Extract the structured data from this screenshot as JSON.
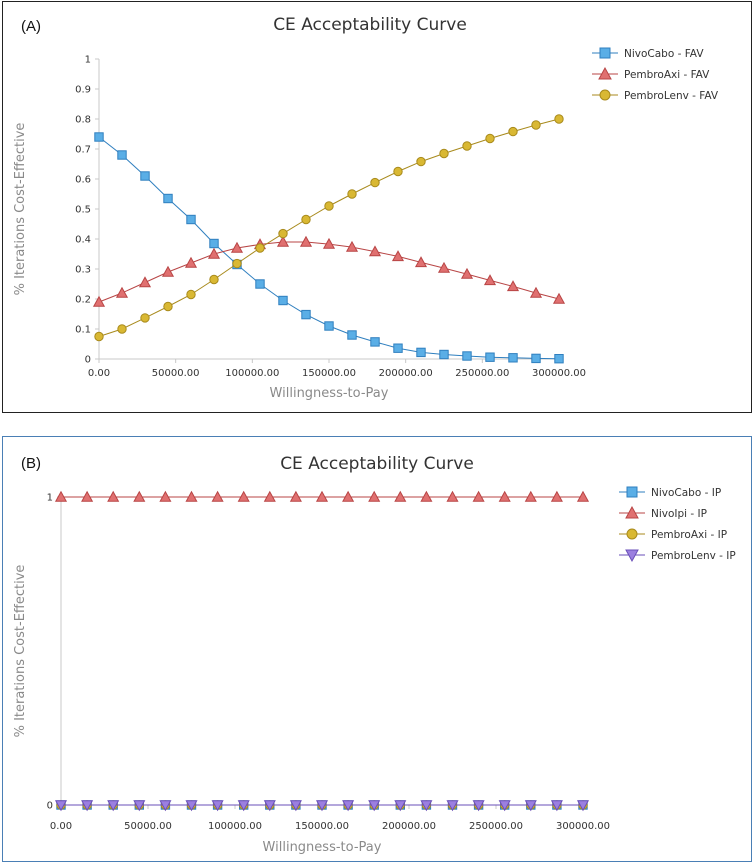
{
  "chart_data": [
    {
      "type": "line",
      "panel_label": "(A)",
      "title": "CE Acceptability Curve",
      "xlabel": "Willingness-to-Pay",
      "ylabel": "% Iterations Cost-Effective",
      "xlim": [
        0,
        300000
      ],
      "ylim": [
        0,
        1
      ],
      "xticks": [
        0,
        50000,
        100000,
        150000,
        200000,
        250000,
        300000
      ],
      "xtick_labels": [
        "0.00",
        "50000.00",
        "100000.00",
        "150000.00",
        "200000.00",
        "250000.00",
        "300000.00"
      ],
      "yticks": [
        0,
        0.1,
        0.2,
        0.3,
        0.4,
        0.5,
        0.6,
        0.7,
        0.8,
        0.9,
        1
      ],
      "ytick_labels": [
        "0",
        "0.1",
        "0.2",
        "0.3",
        "0.4",
        "0.5",
        "0.6",
        "0.7",
        "0.8",
        "0.9",
        "1"
      ],
      "grid": false,
      "legend_position": "top-right",
      "x": [
        0,
        15000,
        30000,
        45000,
        60000,
        75000,
        90000,
        105000,
        120000,
        135000,
        150000,
        165000,
        180000,
        195000,
        210000,
        225000,
        240000,
        255000,
        270000,
        285000,
        300000
      ],
      "series": [
        {
          "name": "NivoCabo - FAV",
          "marker": "square",
          "color": "#5aaee6",
          "stroke": "#2f7fbf",
          "values": [
            0.74,
            0.68,
            0.61,
            0.535,
            0.465,
            0.385,
            0.315,
            0.25,
            0.195,
            0.148,
            0.11,
            0.08,
            0.057,
            0.036,
            0.022,
            0.015,
            0.01,
            0.006,
            0.004,
            0.002,
            0.001
          ]
        },
        {
          "name": "PembroAxi - FAV",
          "marker": "triangle-up",
          "color": "#e07070",
          "stroke": "#b84545",
          "values": [
            0.19,
            0.22,
            0.255,
            0.29,
            0.32,
            0.35,
            0.37,
            0.382,
            0.39,
            0.39,
            0.383,
            0.373,
            0.358,
            0.342,
            0.322,
            0.303,
            0.283,
            0.262,
            0.242,
            0.22,
            0.2
          ]
        },
        {
          "name": "PembroLenv - FAV",
          "marker": "circle",
          "color": "#d9b833",
          "stroke": "#a88a1c",
          "values": [
            0.075,
            0.1,
            0.137,
            0.175,
            0.215,
            0.265,
            0.318,
            0.37,
            0.418,
            0.465,
            0.51,
            0.55,
            0.588,
            0.625,
            0.658,
            0.685,
            0.71,
            0.735,
            0.758,
            0.78,
            0.8
          ]
        }
      ]
    },
    {
      "type": "line",
      "panel_label": "(B)",
      "title": "CE Acceptability Curve",
      "xlabel": "Willingness-to-Pay",
      "ylabel": "% Iterations Cost-Effective",
      "xlim": [
        0,
        300000
      ],
      "ylim": [
        0,
        1
      ],
      "xticks": [
        0,
        50000,
        100000,
        150000,
        200000,
        250000,
        300000
      ],
      "xtick_labels": [
        "0.00",
        "50000.00",
        "100000.00",
        "150000.00",
        "200000.00",
        "250000.00",
        "300000.00"
      ],
      "yticks": [
        0,
        1
      ],
      "ytick_labels": [
        "0",
        "1"
      ],
      "grid": false,
      "legend_position": "top-right",
      "x": [
        0,
        15000,
        30000,
        45000,
        60000,
        75000,
        90000,
        105000,
        120000,
        135000,
        150000,
        165000,
        180000,
        195000,
        210000,
        225000,
        240000,
        255000,
        270000,
        285000,
        300000
      ],
      "series": [
        {
          "name": "NivoCabo - IP",
          "marker": "square",
          "color": "#5aaee6",
          "stroke": "#2f7fbf",
          "values": [
            0,
            0,
            0,
            0,
            0,
            0,
            0,
            0,
            0,
            0,
            0,
            0,
            0,
            0,
            0,
            0,
            0,
            0,
            0,
            0,
            0
          ]
        },
        {
          "name": "NivoIpi - IP",
          "marker": "triangle-up",
          "color": "#e07070",
          "stroke": "#b84545",
          "values": [
            1,
            1,
            1,
            1,
            1,
            1,
            1,
            1,
            1,
            1,
            1,
            1,
            1,
            1,
            1,
            1,
            1,
            1,
            1,
            1,
            1
          ]
        },
        {
          "name": "PembroAxi - IP",
          "marker": "circle",
          "color": "#d9b833",
          "stroke": "#a88a1c",
          "values": [
            0,
            0,
            0,
            0,
            0,
            0,
            0,
            0,
            0,
            0,
            0,
            0,
            0,
            0,
            0,
            0,
            0,
            0,
            0,
            0,
            0
          ]
        },
        {
          "name": "PembroLenv - IP",
          "marker": "triangle-down",
          "color": "#9b7fe0",
          "stroke": "#6a4fb8",
          "values": [
            0,
            0,
            0,
            0,
            0,
            0,
            0,
            0,
            0,
            0,
            0,
            0,
            0,
            0,
            0,
            0,
            0,
            0,
            0,
            0,
            0
          ]
        }
      ]
    }
  ]
}
